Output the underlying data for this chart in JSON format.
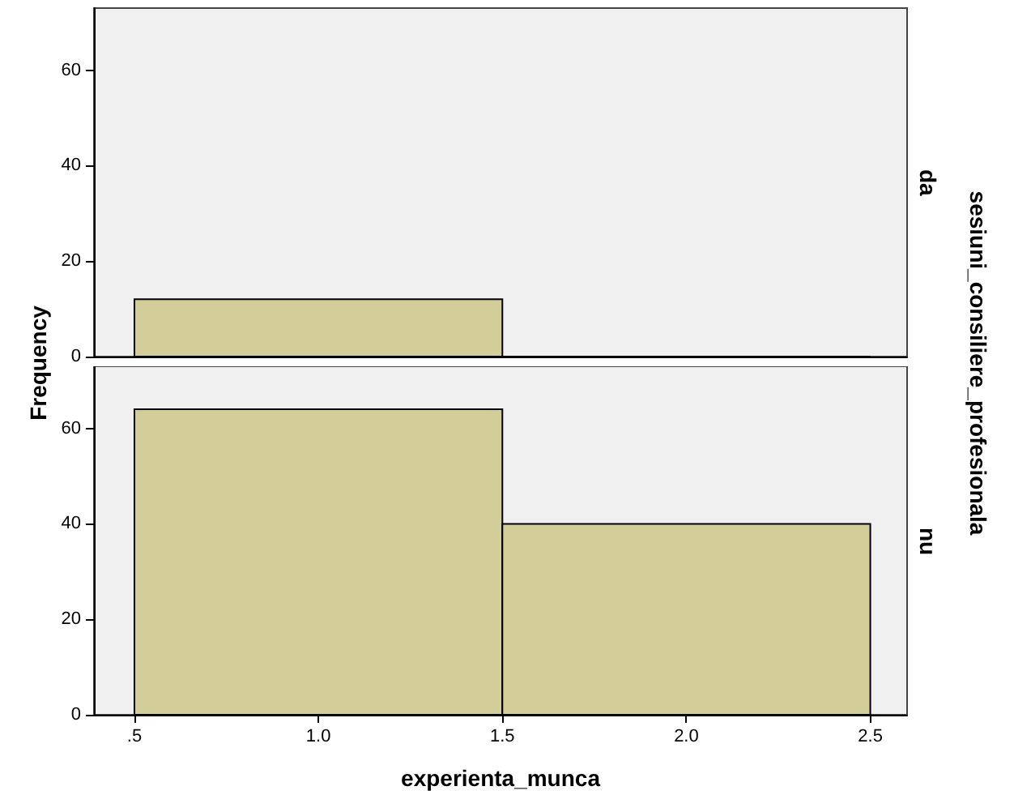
{
  "chart_data": [
    {
      "type": "histogram",
      "ylabel": "Frequency",
      "y2label": "da",
      "annotations": [
        "sesiuni_consiliere_profesionala"
      ],
      "bins": [
        0.5,
        1.5,
        2.5
      ],
      "values": [
        12,
        0
      ],
      "color": "#d3ce99",
      "xlim": [
        0.39,
        2.6
      ],
      "ylim": [
        0,
        73
      ],
      "yticks": [
        0,
        20,
        40,
        60
      ],
      "tick_labels": "y",
      "grid": false
    },
    {
      "type": "histogram",
      "xlabel": "experienta_munca",
      "y2label": "nu",
      "bins": [
        0.5,
        1.5,
        2.5
      ],
      "values": [
        64,
        40
      ],
      "color": "#d3ce99",
      "xlim": [
        0.39,
        2.6
      ],
      "xticks": [
        {
          "value": 0.5,
          "label": ".5"
        },
        {
          "value": 1,
          "label": "1.0"
        },
        {
          "value": 1.5,
          "label": "1.5"
        },
        {
          "value": 2,
          "label": "2.0"
        },
        {
          "value": 2.5,
          "label": "2.5"
        }
      ],
      "ylim": [
        0,
        73
      ],
      "yticks": [
        0,
        20,
        40,
        60
      ],
      "grid": false
    }
  ]
}
